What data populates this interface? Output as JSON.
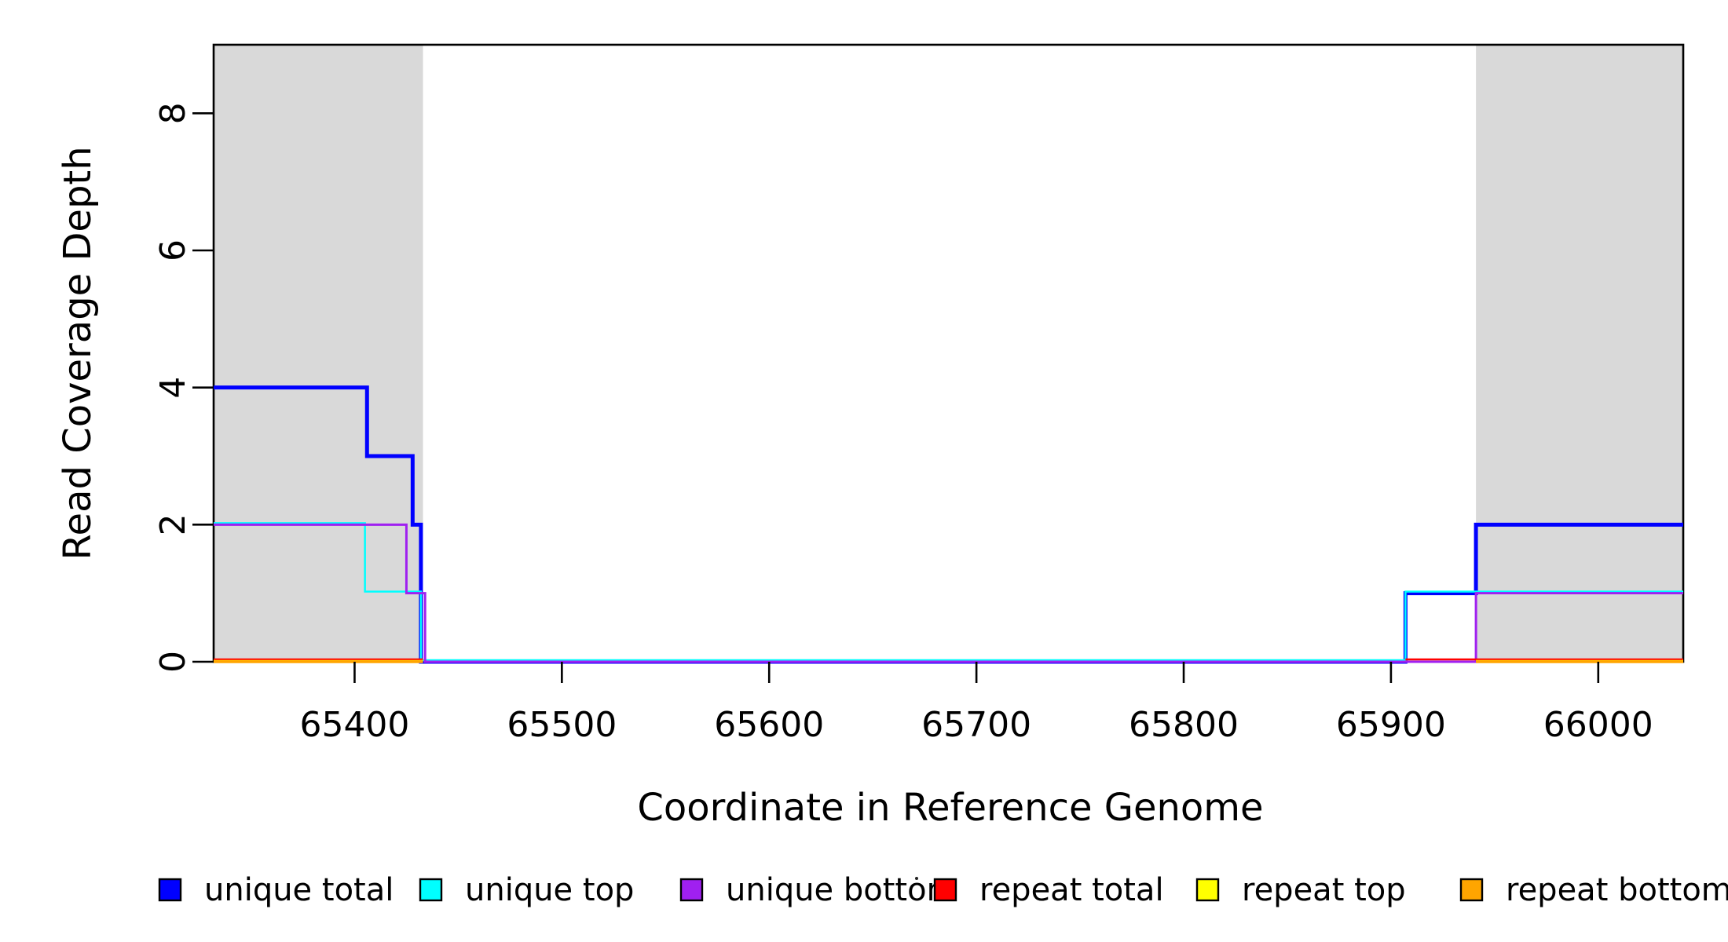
{
  "chart_data": {
    "type": "line",
    "subtype": "step-coverage-plot",
    "title": "",
    "xlabel": "Coordinate in Reference Genome",
    "ylabel": "Read Coverage Depth",
    "xlim": [
      65332,
      66041
    ],
    "ylim": [
      0,
      9
    ],
    "x_ticks": [
      {
        "value": 65400,
        "label": "65400"
      },
      {
        "value": 65500,
        "label": "65500"
      },
      {
        "value": 65600,
        "label": "65600"
      },
      {
        "value": 65700,
        "label": "65700"
      },
      {
        "value": 65800,
        "label": "65800"
      },
      {
        "value": 65900,
        "label": "65900"
      },
      {
        "value": 66000,
        "label": "66000"
      }
    ],
    "y_ticks": [
      {
        "value": 0,
        "label": "0"
      },
      {
        "value": 2,
        "label": "2"
      },
      {
        "value": 4,
        "label": "4"
      },
      {
        "value": 6,
        "label": "6"
      },
      {
        "value": 8,
        "label": "8"
      }
    ],
    "grid": false,
    "box": true,
    "shaded_regions": [
      {
        "name": "repeat-region-left",
        "x0": 65332,
        "x1": 65433,
        "color": "#d9d9d9"
      },
      {
        "name": "repeat-region-right",
        "x0": 65941,
        "x1": 66041,
        "color": "#d9d9d9"
      }
    ],
    "series": [
      {
        "name": "unique total",
        "color": "#0000ff",
        "steps": [
          [
            65332,
            4
          ],
          [
            65406,
            3
          ],
          [
            65428,
            2
          ],
          [
            65432,
            0
          ],
          [
            65907,
            1
          ],
          [
            65941,
            2
          ],
          [
            66041,
            2
          ]
        ]
      },
      {
        "name": "unique top",
        "color": "#00ffff",
        "steps": [
          [
            65332,
            2
          ],
          [
            65405,
            1
          ],
          [
            65432,
            0
          ],
          [
            65907,
            1
          ],
          [
            66041,
            1
          ]
        ]
      },
      {
        "name": "unique bottom",
        "color": "#a020f0",
        "steps": [
          [
            65332,
            2
          ],
          [
            65425,
            1
          ],
          [
            65434,
            0
          ],
          [
            65941,
            1
          ],
          [
            66041,
            1
          ]
        ]
      },
      {
        "name": "repeat total",
        "color": "#ff0000",
        "segments": [
          {
            "x0": 65332,
            "x1": 65433,
            "value": 0
          },
          {
            "x0": 65907,
            "x1": 66041,
            "value": 0
          }
        ]
      },
      {
        "name": "repeat top",
        "color": "#ffff00",
        "segments": [
          {
            "x0": 65332,
            "x1": 65433,
            "value": 0
          },
          {
            "x0": 65941,
            "x1": 66041,
            "value": 0
          }
        ]
      },
      {
        "name": "repeat bottom",
        "color": "#ffa500",
        "segments": [
          {
            "x0": 65332,
            "x1": 65433,
            "value": 0
          },
          {
            "x0": 65941,
            "x1": 66041,
            "value": 0
          }
        ]
      }
    ],
    "legend": {
      "position": "bottom",
      "entries": [
        {
          "label": "unique total",
          "color": "#0000ff"
        },
        {
          "label": "unique top",
          "color": "#00ffff"
        },
        {
          "label": "unique bottom",
          "color": "#a020f0"
        },
        {
          "label": "repeat total",
          "color": "#ff0000"
        },
        {
          "label": "repeat top",
          "color": "#ffff00"
        },
        {
          "label": "repeat bottom",
          "color": "#ffa500"
        }
      ]
    },
    "colors": {
      "axis": "#000000",
      "text": "#000000",
      "background": "#ffffff",
      "shade": "#d9d9d9"
    }
  }
}
